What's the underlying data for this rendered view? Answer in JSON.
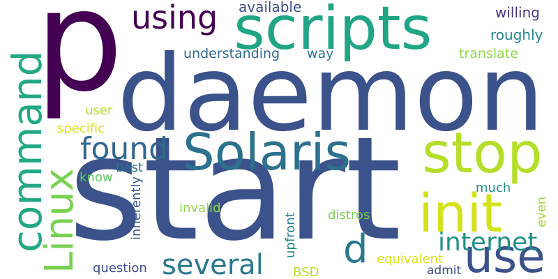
{
  "word_cloud": {
    "words": [
      {
        "key": "p",
        "text": "p",
        "color": "#440154"
      },
      {
        "key": "daemon",
        "text": "daemon",
        "color": "#3b528b"
      },
      {
        "key": "start",
        "text": "start",
        "color": "#3b528b"
      },
      {
        "key": "scripts",
        "text": "scripts",
        "color": "#21a585"
      },
      {
        "key": "solaris",
        "text": "Solaris",
        "color": "#2c718e"
      },
      {
        "key": "stop",
        "text": "stop",
        "color": "#b5de2b"
      },
      {
        "key": "init",
        "text": "init",
        "color": "#d2e21b"
      },
      {
        "key": "use",
        "text": "use",
        "color": "#3b528b"
      },
      {
        "key": "command",
        "text": "command",
        "color": "#22a884"
      },
      {
        "key": "linux",
        "text": "Linux",
        "color": "#7ad151"
      },
      {
        "key": "using",
        "text": "using",
        "color": "#440154"
      },
      {
        "key": "found",
        "text": "found",
        "color": "#31688e"
      },
      {
        "key": "several",
        "text": "several",
        "color": "#2a788e"
      },
      {
        "key": "internet",
        "text": "internet",
        "color": "#21918c"
      },
      {
        "key": "d",
        "text": "d",
        "color": "#2a788e"
      },
      {
        "key": "available",
        "text": "available",
        "color": "#3e4a89"
      },
      {
        "key": "willing",
        "text": "willing",
        "color": "#46337e"
      },
      {
        "key": "roughly",
        "text": "roughly",
        "color": "#25858e"
      },
      {
        "key": "understanding",
        "text": "understanding",
        "color": "#31688e"
      },
      {
        "key": "way",
        "text": "way",
        "color": "#2a788e"
      },
      {
        "key": "translate",
        "text": "translate",
        "color": "#8fd744"
      },
      {
        "key": "user",
        "text": "user",
        "color": "#b5de2b"
      },
      {
        "key": "specific",
        "text": "specific",
        "color": "#d8e219"
      },
      {
        "key": "best",
        "text": "best",
        "color": "#2c718e"
      },
      {
        "key": "know",
        "text": "know",
        "color": "#5ec962"
      },
      {
        "key": "inherently",
        "text": "inherently",
        "color": "#3b528b"
      },
      {
        "key": "invalid",
        "text": "invalid",
        "color": "#8fd744"
      },
      {
        "key": "much",
        "text": "much",
        "color": "#21918c"
      },
      {
        "key": "even",
        "text": "even",
        "color": "#a0da39"
      },
      {
        "key": "distros",
        "text": "distros",
        "color": "#7ad151"
      },
      {
        "key": "upfront",
        "text": "upfront",
        "color": "#25858e"
      },
      {
        "key": "equivalent",
        "text": "equivalent",
        "color": "#d8e219"
      },
      {
        "key": "admit",
        "text": "admit",
        "color": "#3e4a89"
      },
      {
        "key": "question",
        "text": "question",
        "color": "#3e4a89"
      },
      {
        "key": "bsd",
        "text": "BSD",
        "color": "#b5de2b"
      }
    ]
  }
}
